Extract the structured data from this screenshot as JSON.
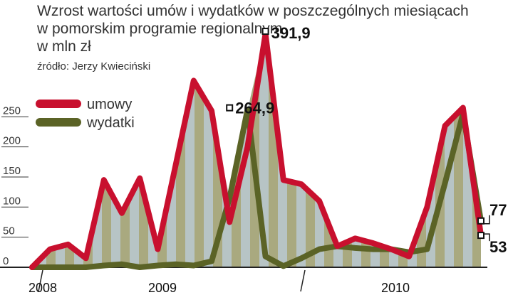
{
  "title_lines": [
    "Wzrost wartości umów i wydatków w poszczególnych miesiącach",
    "w pomorskim programie regionalnym",
    "w mln zł"
  ],
  "source": "źródło: Jerzy Kwieciński",
  "colors": {
    "umowy": "#c8102e",
    "wydatki": "#5b6326",
    "fill_stripe_a": "#b7c4c5",
    "fill_stripe_b": "#a9a97f"
  },
  "chart_data": {
    "type": "line",
    "x": [
      "2008-12",
      "2009-01",
      "2009-02",
      "2009-03",
      "2009-04",
      "2009-05",
      "2009-06",
      "2009-07",
      "2009-08",
      "2009-09",
      "2009-10",
      "2009-11",
      "2009-12",
      "2010-01",
      "2010-02",
      "2010-03",
      "2010-04",
      "2010-05",
      "2010-06",
      "2010-07",
      "2010-08",
      "2010-09",
      "2010-10",
      "2010-11",
      "2010-12",
      "2011-01"
    ],
    "x_tick_labels": [
      "2008",
      "2009",
      "2010"
    ],
    "series": [
      {
        "name": "umowy",
        "values": [
          0,
          30,
          38,
          15,
          145,
          90,
          148,
          30,
          170,
          310,
          260,
          75,
          200,
          388,
          145,
          138,
          110,
          35,
          48,
          40,
          30,
          18,
          100,
          235,
          265,
          53
        ]
      },
      {
        "name": "wydatki",
        "values": [
          0,
          0,
          0,
          0,
          3,
          5,
          0,
          3,
          5,
          3,
          10,
          115,
          262,
          18,
          2,
          15,
          30,
          35,
          32,
          30,
          30,
          25,
          30,
          140,
          255,
          77
        ]
      }
    ],
    "annotations": [
      {
        "label": "391,9",
        "x": "2010-01",
        "y": 391.9
      },
      {
        "label": "264,9",
        "x": "2009-11",
        "y": 264.9
      },
      {
        "label": "77",
        "x": "2011-01",
        "y": 77
      },
      {
        "label": "53",
        "x": "2011-01",
        "y": 53
      }
    ],
    "yticks": [
      0,
      50,
      100,
      150,
      200,
      250
    ],
    "ylim": [
      0,
      400
    ],
    "grid": false,
    "legend": "top-left"
  }
}
